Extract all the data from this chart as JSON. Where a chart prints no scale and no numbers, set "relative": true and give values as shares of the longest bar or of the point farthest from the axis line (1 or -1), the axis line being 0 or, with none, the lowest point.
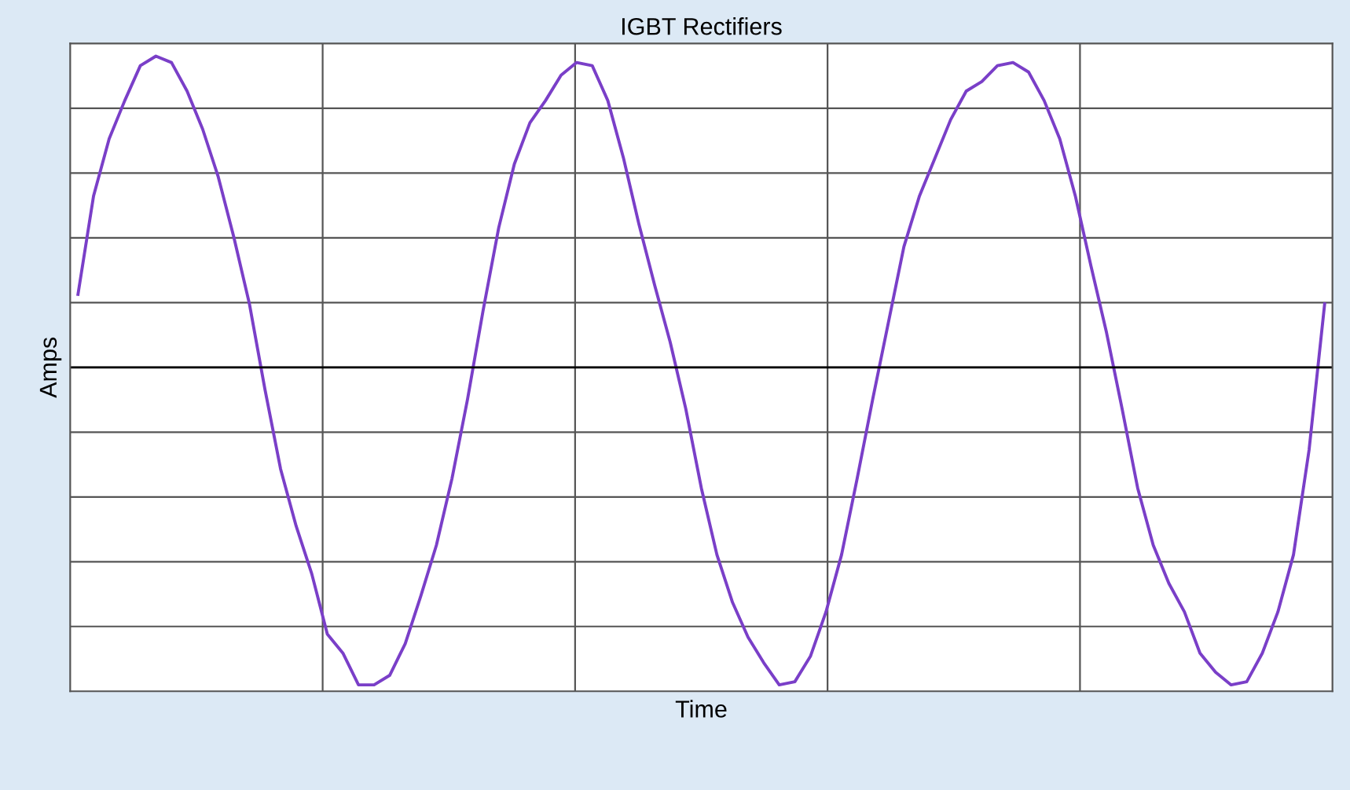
{
  "chart_data": {
    "type": "line",
    "title": "IGBT Rectifiers",
    "xlabel": "Time",
    "ylabel": "Amps",
    "relative": true,
    "grid": true,
    "legend": false,
    "categories": [
      null,
      null,
      null,
      null,
      null,
      null,
      null,
      null,
      null,
      null,
      null,
      null,
      null,
      null,
      null,
      null,
      null,
      null,
      null,
      null,
      null,
      null,
      null,
      null,
      null,
      null,
      null,
      null,
      null,
      null,
      null,
      null,
      null,
      null,
      null,
      null,
      null,
      null,
      null,
      null,
      null,
      null,
      null,
      null,
      null,
      null,
      null,
      null,
      null,
      null,
      null,
      null,
      null,
      null,
      null,
      null,
      null,
      null,
      null,
      null,
      null,
      null,
      null,
      null,
      null,
      null,
      null,
      null,
      null,
      null,
      null,
      null,
      null,
      null,
      null,
      null,
      null,
      null,
      null,
      null,
      null
    ],
    "series": [
      {
        "color": "#7a3fc8",
        "values": [
          0.23,
          0.54,
          0.72,
          0.84,
          0.95,
          0.98,
          0.96,
          0.87,
          0.75,
          0.6,
          0.41,
          0.2,
          -0.07,
          -0.32,
          -0.5,
          -0.65,
          -0.84,
          -0.9,
          -1.0,
          -1.0,
          -0.97,
          -0.87,
          -0.72,
          -0.56,
          -0.35,
          -0.1,
          0.18,
          0.44,
          0.64,
          0.77,
          0.84,
          0.92,
          0.96,
          0.95,
          0.84,
          0.66,
          0.45,
          0.26,
          0.08,
          -0.13,
          -0.38,
          -0.59,
          -0.74,
          -0.85,
          -0.93,
          -1.0,
          -0.99,
          -0.91,
          -0.77,
          -0.59,
          -0.35,
          -0.1,
          0.14,
          0.38,
          0.54,
          0.66,
          0.78,
          0.87,
          0.9,
          0.95,
          0.96,
          0.93,
          0.84,
          0.72,
          0.54,
          0.32,
          0.11,
          -0.13,
          -0.38,
          -0.56,
          -0.68,
          -0.77,
          -0.9,
          -0.96,
          -1.0,
          -0.99,
          -0.9,
          -0.77,
          -0.59,
          -0.26,
          0.2
        ]
      }
    ]
  }
}
